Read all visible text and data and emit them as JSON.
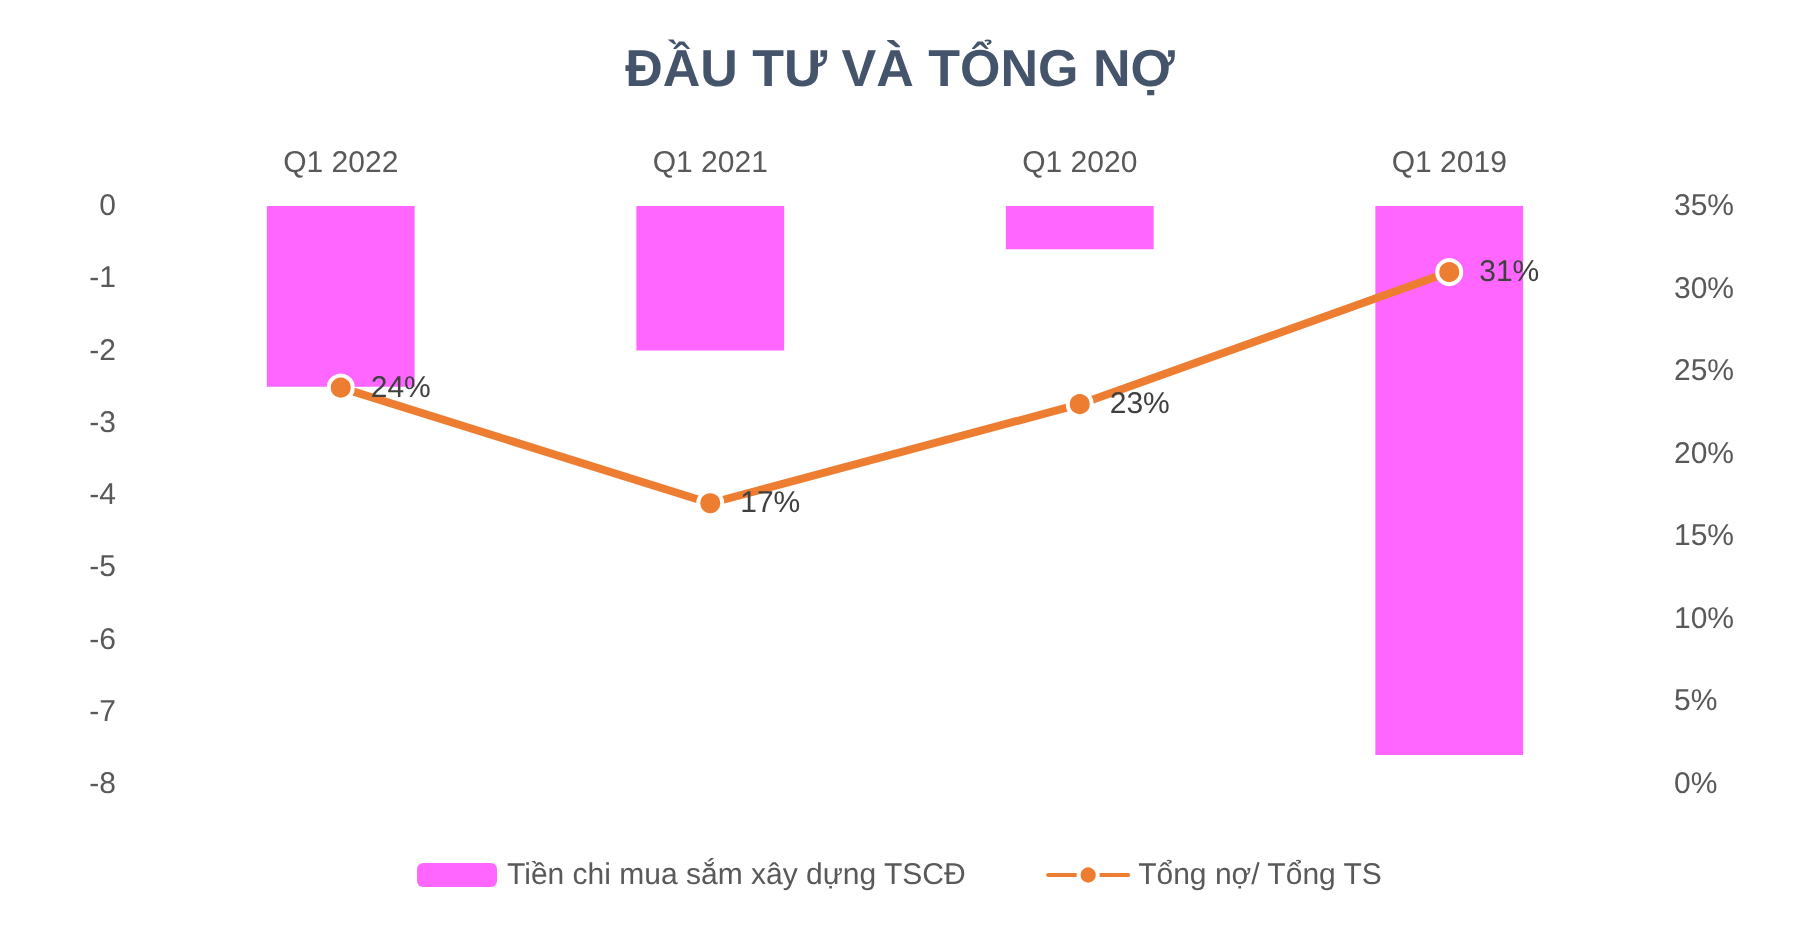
{
  "chart_data": {
    "type": "bar",
    "title": "ĐẦU TƯ VÀ TỔNG NỢ",
    "categories": [
      "Q1 2022",
      "Q1 2021",
      "Q1 2020",
      "Q1 2019"
    ],
    "series": [
      {
        "name": "Tiền chi mua sắm xây dựng TSCĐ",
        "color": "#ff66ff",
        "values": [
          -2.5,
          -2.0,
          -0.6,
          -7.6
        ]
      },
      {
        "name": "Tổng nợ/ Tổng TS",
        "type": "line",
        "axis": "y2",
        "color": "#ed7d31",
        "values": [
          24,
          17,
          23,
          31
        ],
        "value_labels": [
          "24%",
          "17%",
          "23%",
          "31%"
        ]
      }
    ],
    "ylim": [
      -8,
      0
    ],
    "yticks": [
      -8,
      -7,
      -6,
      -5,
      -4,
      -3,
      -2,
      -1,
      0
    ],
    "y2lim": [
      0,
      35
    ],
    "y2ticks": [
      {
        "value": 0,
        "label": "0%"
      },
      {
        "value": 5,
        "label": "5%"
      },
      {
        "value": 10,
        "label": "10%"
      },
      {
        "value": 15,
        "label": "15%"
      },
      {
        "value": 20,
        "label": "20%"
      },
      {
        "value": 25,
        "label": "25%"
      },
      {
        "value": 30,
        "label": "30%"
      },
      {
        "value": 35,
        "label": "35%"
      }
    ],
    "grid": false,
    "legend": "bottom",
    "marker": "circle",
    "line_style": "solid"
  }
}
